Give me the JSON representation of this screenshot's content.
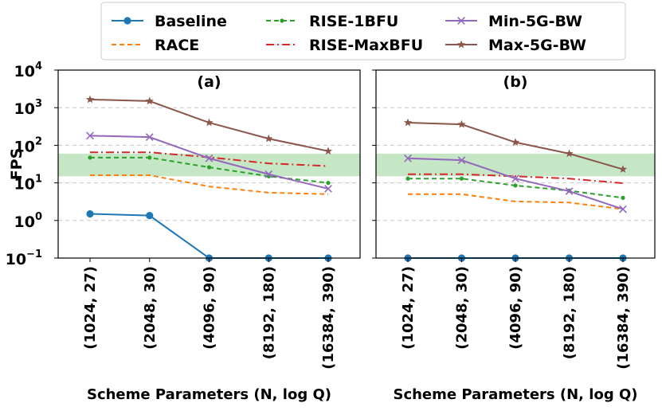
{
  "chart_data": {
    "type": "line",
    "ylabel": "FPS",
    "yscale": "log",
    "ylim": [
      0.1,
      10000
    ],
    "y_ticks": [
      {
        "value": 0.1,
        "base": "10",
        "exp": "−1"
      },
      {
        "value": 1,
        "base": "10",
        "exp": "0"
      },
      {
        "value": 10,
        "base": "10",
        "exp": "1"
      },
      {
        "value": 100,
        "base": "10",
        "exp": "2"
      },
      {
        "value": 1000,
        "base": "10",
        "exp": "3"
      },
      {
        "value": 10000,
        "base": "10",
        "exp": "4"
      }
    ],
    "grid": "horizontal dashed",
    "shaded_band": {
      "from": 15,
      "to": 60,
      "color": "#7fc97f"
    },
    "legend_placement": "top (outside), 3 columns",
    "legend": [
      {
        "name": "Baseline",
        "color": "#1f77b4",
        "dash": "",
        "marker": "circle"
      },
      {
        "name": "RACE",
        "color": "#ff7f0e",
        "dash": "6,4",
        "marker": "none"
      },
      {
        "name": "RISE-1BFU",
        "color": "#2ca02c",
        "dash": "6,4",
        "marker": "dot"
      },
      {
        "name": "RISE-MaxBFU",
        "color": "#d62728",
        "dash": "10,4,2,4",
        "marker": "none"
      },
      {
        "name": "Min-5G-BW",
        "color": "#9467bd",
        "dash": "",
        "marker": "x"
      },
      {
        "name": "Max-5G-BW",
        "color": "#8c564b",
        "dash": "",
        "marker": "star"
      }
    ],
    "panels": [
      {
        "title": "(a)",
        "xlabel": "Scheme Parameters (N, log Q)",
        "categories": [
          "(1024, 27)",
          "(2048, 30)",
          "(4096, 90)",
          "(8192, 180)",
          "(16384, 390)"
        ],
        "series": [
          {
            "name": "Baseline",
            "values": [
              1.5,
              1.35,
              0.1,
              0.1,
              0.1
            ]
          },
          {
            "name": "RACE",
            "values": [
              16,
              16,
              8,
              5.5,
              5
            ]
          },
          {
            "name": "RISE-1BFU",
            "values": [
              47,
              47,
              26,
              15,
              10
            ]
          },
          {
            "name": "RISE-MaxBFU",
            "values": [
              65,
              65,
              48,
              33,
              28
            ]
          },
          {
            "name": "Min-5G-BW",
            "values": [
              180,
              165,
              45,
              17,
              7
            ]
          },
          {
            "name": "Max-5G-BW",
            "values": [
              1650,
              1500,
              400,
              150,
              70
            ]
          }
        ]
      },
      {
        "title": "(b)",
        "xlabel": "Scheme Parameters (N, log Q)",
        "categories": [
          "(1024, 27)",
          "(2048, 30)",
          "(4096, 90)",
          "(8192, 180)",
          "(16384, 390)"
        ],
        "series": [
          {
            "name": "Baseline",
            "values": [
              0.1,
              0.1,
              0.1,
              0.1,
              0.1
            ]
          },
          {
            "name": "RACE",
            "values": [
              5,
              5,
              3.2,
              3,
              2
            ]
          },
          {
            "name": "RISE-1BFU",
            "values": [
              13,
              13,
              8.5,
              6.2,
              4
            ]
          },
          {
            "name": "RISE-MaxBFU",
            "values": [
              17,
              17,
              15,
              13,
              9.8
            ]
          },
          {
            "name": "Min-5G-BW",
            "values": [
              45,
              40,
              13,
              6,
              2
            ]
          },
          {
            "name": "Max-5G-BW",
            "values": [
              400,
              360,
              120,
              60,
              23
            ]
          }
        ]
      }
    ]
  }
}
